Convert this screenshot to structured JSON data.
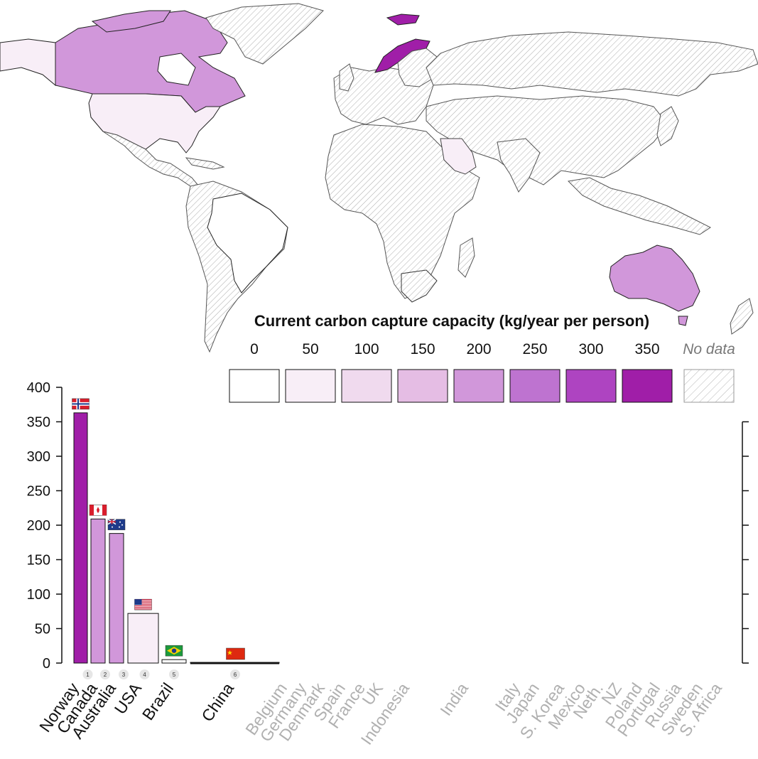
{
  "legend": {
    "title": "Current carbon capture capacity (kg/year per person)",
    "ticks": [
      "0",
      "50",
      "100",
      "150",
      "200",
      "250",
      "300",
      "350"
    ],
    "colors": [
      "#ffffff",
      "#f8eef7",
      "#f0daee",
      "#e5bde4",
      "#d197da",
      "#be73d0",
      "#ae44c1",
      "#a01ea8"
    ],
    "no_data_label": "No data",
    "no_data_hatch": "#aaaaaa"
  },
  "map": {
    "ocean_color": "#ffffff",
    "no_data_fill": "hatched-gray",
    "highlighted_countries": [
      {
        "name": "Norway",
        "color": "#a01ea8"
      },
      {
        "name": "Canada",
        "color": "#d197da"
      },
      {
        "name": "Australia",
        "color": "#d197da"
      },
      {
        "name": "USA",
        "color": "#f8eef7"
      },
      {
        "name": "Brazil",
        "color": "#ffffff"
      },
      {
        "name": "Saudi Arabia",
        "color": "#f8eef7"
      },
      {
        "name": "Alaska",
        "color": "#f8eef7"
      }
    ]
  },
  "chart_data": {
    "type": "bar",
    "ylim": [
      0,
      400
    ],
    "yticks": [
      0,
      50,
      100,
      150,
      200,
      250,
      300,
      350,
      400
    ],
    "categories": [
      "Norway",
      "Canada",
      "Australia",
      "USA",
      "Brazil",
      "China"
    ],
    "values": [
      363,
      209,
      188,
      72,
      5,
      1
    ],
    "ranks": [
      "1",
      "2",
      "3",
      "4",
      "5",
      "6"
    ],
    "colors": [
      "#a01ea8",
      "#d197da",
      "#d197da",
      "#f8eef7",
      "#ffffff",
      "#ffffff"
    ],
    "flags": [
      "norway-flag-icon",
      "canada-flag-icon",
      "australia-flag-icon",
      "usa-flag-icon",
      "brazil-flag-icon",
      "china-flag-icon"
    ],
    "no_data_countries": [
      "Belgium",
      "Germany",
      "Denmark",
      "Spain",
      "France",
      "UK",
      "Indonesia",
      "India",
      "Italy",
      "Japan",
      "S. Korea",
      "Mexico",
      "Neth.",
      "NZ",
      "Poland",
      "Portugal",
      "Russia",
      "Sweden",
      "S. Africa"
    ],
    "label_color_data": "#111111",
    "label_color_nodata": "#b0b0b0"
  }
}
